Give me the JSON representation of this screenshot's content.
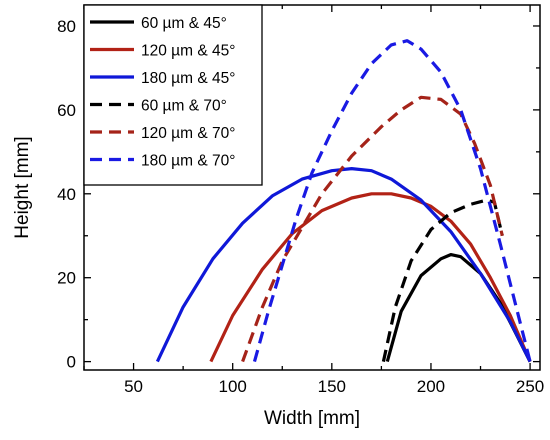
{
  "chart_data": {
    "type": "line",
    "title": "",
    "xlabel": "Width [mm]",
    "ylabel": "Height [mm]",
    "xlim": [
      25,
      255
    ],
    "ylim": [
      -2,
      85
    ],
    "xticks": [
      "50",
      "100",
      "150",
      "200",
      "250"
    ],
    "yticks": [
      "0",
      "20",
      "40",
      "60",
      "80"
    ],
    "grid": false,
    "legend_position": "top-left",
    "series": [
      {
        "name": "60 µm & 45°",
        "color": "#000000",
        "dash": "solid",
        "x": [
          178,
          185,
          195,
          205,
          210,
          215,
          225,
          235,
          242,
          250
        ],
        "y": [
          0,
          12,
          20.5,
          24.5,
          25.5,
          25,
          21,
          14,
          7.5,
          0
        ]
      },
      {
        "name": "120 µm & 45°",
        "color": "#b22216",
        "dash": "solid",
        "x": [
          89,
          100,
          115,
          130,
          145,
          160,
          170,
          180,
          190,
          200,
          210,
          220,
          230,
          240,
          250
        ],
        "y": [
          0,
          11,
          22,
          30.5,
          36,
          39,
          40,
          40,
          39,
          37,
          33.5,
          28,
          20,
          11,
          0
        ]
      },
      {
        "name": "180 µm & 45°",
        "color": "#0f18d8",
        "dash": "solid",
        "x": [
          62,
          75,
          90,
          105,
          120,
          135,
          150,
          160,
          170,
          180,
          195,
          210,
          225,
          240,
          250
        ],
        "y": [
          0,
          13,
          24.5,
          33,
          39.5,
          43.5,
          45.5,
          46,
          45.5,
          43.5,
          38.5,
          31,
          21,
          9.5,
          0
        ]
      },
      {
        "name": "60 µm & 70°",
        "color": "#000000",
        "dash": "dashed",
        "x": [
          176,
          182,
          190,
          200,
          210,
          220,
          228,
          232,
          236
        ],
        "y": [
          0,
          13,
          24,
          31.5,
          35.5,
          37.5,
          38.5,
          38,
          30
        ]
      },
      {
        "name": "120 µm & 70°",
        "color": "#a52319",
        "dash": "dashed",
        "x": [
          105,
          115,
          125,
          135,
          145,
          160,
          175,
          185,
          195,
          205,
          215,
          222,
          230,
          236
        ],
        "y": [
          0,
          13,
          24,
          32,
          40,
          49,
          56,
          60,
          63,
          62.5,
          59,
          52,
          42,
          30
        ]
      },
      {
        "name": "180 µm & 70°",
        "color": "#1a1ae3",
        "dash": "dashed",
        "x": [
          111,
          118,
          125,
          132,
          140,
          150,
          160,
          170,
          180,
          188,
          195,
          205,
          215,
          225,
          235,
          243,
          250
        ],
        "y": [
          0,
          12,
          23,
          34,
          45,
          55,
          64,
          71,
          75.5,
          76.5,
          74.5,
          69,
          60,
          46,
          28,
          13,
          0
        ]
      }
    ]
  }
}
